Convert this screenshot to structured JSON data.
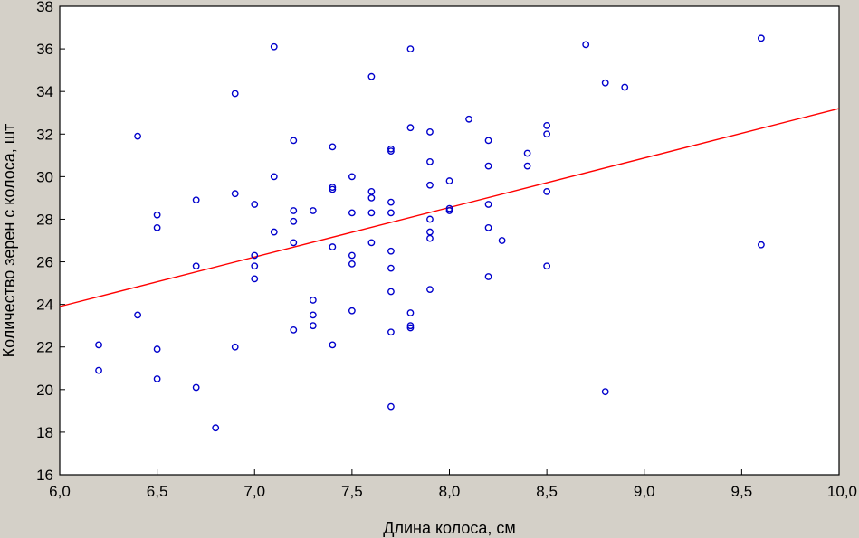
{
  "chart_data": {
    "type": "scatter",
    "xlabel": "Длина колоса, см",
    "ylabel": "Количество зерен с колоса, шт",
    "xlim": [
      6.0,
      10.0
    ],
    "ylim": [
      16,
      38
    ],
    "x_ticks": [
      "6,0",
      "6,5",
      "7,0",
      "7,5",
      "8,0",
      "8,5",
      "9,0",
      "9,5",
      "10,0"
    ],
    "y_ticks": [
      "16",
      "18",
      "20",
      "22",
      "24",
      "26",
      "28",
      "30",
      "32",
      "34",
      "36",
      "38"
    ],
    "grid": false,
    "colors": {
      "background": "#d4d0c8",
      "plot_area": "#ffffff",
      "points": "#0000cc",
      "fit_line": "#ff0000",
      "axes": "#000000"
    },
    "fit_line": {
      "x": [
        6.0,
        10.0
      ],
      "y": [
        23.9,
        33.2
      ]
    },
    "points": [
      [
        6.2,
        22.1
      ],
      [
        6.2,
        20.9
      ],
      [
        6.4,
        31.9
      ],
      [
        6.4,
        23.5
      ],
      [
        6.5,
        28.2
      ],
      [
        6.5,
        27.6
      ],
      [
        6.5,
        21.9
      ],
      [
        6.5,
        20.5
      ],
      [
        6.7,
        28.9
      ],
      [
        6.7,
        25.8
      ],
      [
        6.7,
        20.1
      ],
      [
        6.8,
        18.2
      ],
      [
        6.9,
        33.9
      ],
      [
        6.9,
        29.2
      ],
      [
        6.9,
        22.0
      ],
      [
        7.0,
        28.7
      ],
      [
        7.0,
        26.3
      ],
      [
        7.0,
        25.8
      ],
      [
        7.0,
        25.2
      ],
      [
        7.1,
        36.1
      ],
      [
        7.1,
        30.0
      ],
      [
        7.1,
        27.4
      ],
      [
        7.2,
        31.7
      ],
      [
        7.2,
        28.4
      ],
      [
        7.2,
        27.9
      ],
      [
        7.2,
        26.9
      ],
      [
        7.2,
        22.8
      ],
      [
        7.3,
        28.4
      ],
      [
        7.3,
        24.2
      ],
      [
        7.3,
        23.5
      ],
      [
        7.3,
        23.0
      ],
      [
        7.4,
        31.4
      ],
      [
        7.4,
        29.5
      ],
      [
        7.4,
        29.4
      ],
      [
        7.4,
        26.7
      ],
      [
        7.4,
        22.1
      ],
      [
        7.5,
        30.0
      ],
      [
        7.5,
        28.3
      ],
      [
        7.5,
        26.3
      ],
      [
        7.5,
        25.9
      ],
      [
        7.5,
        23.7
      ],
      [
        7.6,
        34.7
      ],
      [
        7.6,
        29.3
      ],
      [
        7.6,
        29.0
      ],
      [
        7.6,
        28.3
      ],
      [
        7.6,
        26.9
      ],
      [
        7.7,
        31.3
      ],
      [
        7.7,
        31.2
      ],
      [
        7.7,
        28.8
      ],
      [
        7.7,
        28.3
      ],
      [
        7.7,
        26.5
      ],
      [
        7.7,
        25.7
      ],
      [
        7.7,
        24.6
      ],
      [
        7.7,
        22.7
      ],
      [
        7.7,
        19.2
      ],
      [
        7.8,
        36.0
      ],
      [
        7.8,
        32.3
      ],
      [
        7.8,
        23.6
      ],
      [
        7.8,
        23.0
      ],
      [
        7.8,
        22.9
      ],
      [
        7.9,
        32.1
      ],
      [
        7.9,
        30.7
      ],
      [
        7.9,
        29.6
      ],
      [
        7.9,
        28.0
      ],
      [
        7.9,
        27.4
      ],
      [
        7.9,
        27.1
      ],
      [
        7.9,
        24.7
      ],
      [
        8.0,
        29.8
      ],
      [
        8.0,
        28.5
      ],
      [
        8.0,
        28.4
      ],
      [
        8.1,
        32.7
      ],
      [
        8.2,
        31.7
      ],
      [
        8.2,
        30.5
      ],
      [
        8.2,
        28.7
      ],
      [
        8.2,
        27.6
      ],
      [
        8.2,
        25.3
      ],
      [
        8.27,
        27.0
      ],
      [
        8.4,
        31.1
      ],
      [
        8.4,
        30.5
      ],
      [
        8.5,
        32.4
      ],
      [
        8.5,
        32.0
      ],
      [
        8.5,
        29.3
      ],
      [
        8.5,
        25.8
      ],
      [
        8.7,
        36.2
      ],
      [
        8.8,
        34.4
      ],
      [
        8.8,
        19.9
      ],
      [
        8.9,
        34.2
      ],
      [
        9.6,
        36.5
      ],
      [
        9.6,
        26.8
      ]
    ]
  }
}
